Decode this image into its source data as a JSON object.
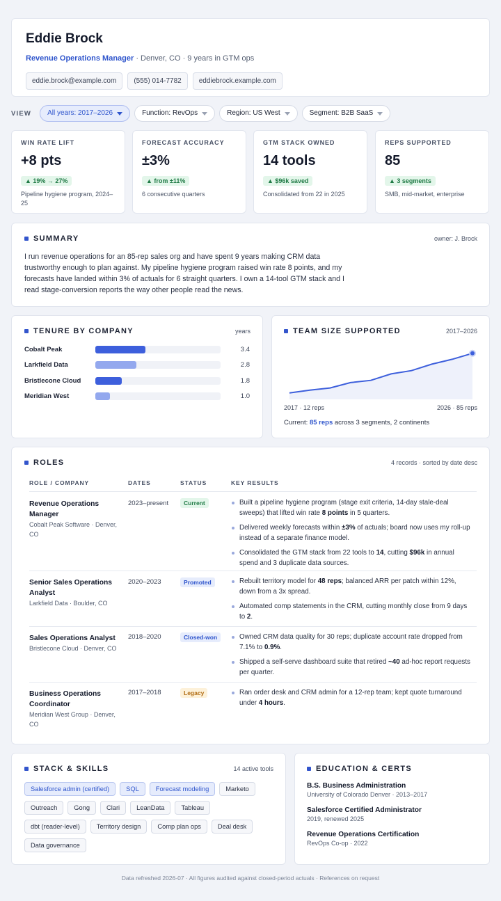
{
  "header": {
    "name": "Eddie Brock",
    "role": "Revenue Operations Manager",
    "details": " · Denver, CO · 9 years in GTM ops",
    "contacts": {
      "email": "eddie.brock@example.com",
      "phone": "(555) 014-7782",
      "website": "eddiebrock.example.com"
    }
  },
  "filters": {
    "label": "VIEW",
    "years": "All years: 2017–2026",
    "function": "Function: RevOps",
    "region": "Region: US West",
    "segment": "Segment: B2B SaaS"
  },
  "kpis": [
    {
      "label": "WIN RATE LIFT",
      "value": "+8 pts",
      "badge": "▲ 19% → 27%",
      "note": "Pipeline hygiene program, 2024–25"
    },
    {
      "label": "FORECAST ACCURACY",
      "value": "±3%",
      "badge": "▲ from ±11%",
      "note": "6 consecutive quarters"
    },
    {
      "label": "GTM STACK OWNED",
      "value": "14 tools",
      "badge": "▲ $96k saved",
      "note": "Consolidated from 22 in 2025"
    },
    {
      "label": "REPS SUPPORTED",
      "value": "85",
      "badge": "▲ 3 segments",
      "note": "SMB, mid-market, enterprise"
    }
  ],
  "summary": {
    "title": "SUMMARY",
    "owner": "owner: J. Brock",
    "text": "I run revenue operations for an 85-rep sales org and have spent 9 years making CRM data trustworthy enough to plan against. My pipeline hygiene program raised win rate 8 points, and my forecasts have landed within 3% of actuals for 6 straight quarters. I own a 14-tool GTM stack and I read stage-conversion reports the way other people read the news."
  },
  "tenure": {
    "title": "TENURE BY COMPANY",
    "unit": "years",
    "colors": [
      "#3d5fdc",
      "#93a8ee",
      "#3d5fdc",
      "#93a8ee"
    ]
  },
  "team": {
    "title": "TEAM SIZE SUPPORTED",
    "range": "2017–2026",
    "axis_start": "2017 · 12 reps",
    "axis_end": "2026 · 85 reps",
    "current_prefix": "Current: ",
    "current_value": "85 reps",
    "current_suffix": " across 3 segments, 2 continents",
    "accent": "#3d5fdc"
  },
  "chart_data": [
    {
      "type": "bar",
      "title": "TENURE BY COMPANY",
      "ylabel": "years",
      "categories": [
        "Cobalt Peak",
        "Larkfield Data",
        "Bristlecone Cloud",
        "Meridian West"
      ],
      "values": [
        3.4,
        2.8,
        1.8,
        1.0
      ],
      "value_labels": [
        "3.4",
        "2.8",
        "1.8",
        "1.0"
      ],
      "xlim": [
        0,
        8.5
      ]
    },
    {
      "type": "area",
      "title": "TEAM SIZE SUPPORTED",
      "x": [
        2017,
        2018,
        2019,
        2020,
        2021,
        2022,
        2023,
        2024,
        2025,
        2026
      ],
      "values": [
        12,
        17,
        21,
        31,
        35,
        47,
        53,
        65,
        74,
        85
      ],
      "ylim": [
        0,
        95
      ]
    }
  ],
  "roles": {
    "title": "ROLES",
    "meta": "4 records · sorted by date desc",
    "headers": {
      "role": "ROLE / COMPANY",
      "dates": "DATES",
      "status": "STATUS",
      "results": "KEY RESULTS"
    },
    "items": [
      {
        "title": "Revenue Operations Manager",
        "org": "Cobalt Peak Software · Denver, CO",
        "dates": "2023–present",
        "status": "Current",
        "r1a": "Built a pipeline hygiene program (stage exit criteria, 14-day stale-deal sweeps) that lifted win rate ",
        "r1b": "8 points",
        "r1c": " in 5 quarters.",
        "r2a": "Delivered weekly forecasts within ",
        "r2b": "±3%",
        "r2c": " of actuals; board now uses my roll-up instead of a separate finance model.",
        "r3a": "Consolidated the GTM stack from 22 tools to ",
        "r3b": "14",
        "r3c": ", cutting ",
        "r3d": "$96k",
        "r3e": " in annual spend and 3 duplicate data sources."
      },
      {
        "title": "Senior Sales Operations Analyst",
        "org": "Larkfield Data · Boulder, CO",
        "dates": "2020–2023",
        "status": "Promoted",
        "r1a": "Rebuilt territory model for ",
        "r1b": "48 reps",
        "r1c": "; balanced ARR per patch within 12%, down from a 3x spread.",
        "r2a": "Automated comp statements in the CRM, cutting monthly close from 9 days to ",
        "r2b": "2",
        "r2c": "."
      },
      {
        "title": "Sales Operations Analyst",
        "org": "Bristlecone Cloud · Denver, CO",
        "dates": "2018–2020",
        "status": "Closed-won",
        "r1a": "Owned CRM data quality for 30 reps; duplicate account rate dropped from 7.1% to ",
        "r1b": "0.9%",
        "r1c": ".",
        "r2a": "Shipped a self-serve dashboard suite that retired ",
        "r2b": "~40",
        "r2c": " ad-hoc report requests per quarter."
      },
      {
        "title": "Business Operations Coordinator",
        "org": "Meridian West Group · Denver, CO",
        "dates": "2017–2018",
        "status": "Legacy",
        "r1a": "Ran order desk and CRM admin for a 12-rep team; kept quote turnaround under ",
        "r1b": "4 hours",
        "r1c": "."
      }
    ]
  },
  "stack": {
    "title": "STACK & SKILLS",
    "meta": "14 active tools",
    "tags": [
      "Salesforce admin (certified)",
      "SQL",
      "Forecast modeling",
      "Marketo",
      "Outreach",
      "Gong",
      "Clari",
      "LeanData",
      "Tableau",
      "dbt (reader-level)",
      "Territory design",
      "Comp plan ops",
      "Deal desk",
      "Data governance"
    ]
  },
  "education": {
    "title": "EDUCATION & CERTS",
    "items": [
      {
        "title": "B.S. Business Administration",
        "sub": "University of Colorado Denver · 2013–2017"
      },
      {
        "title": "Salesforce Certified Administrator",
        "sub": "2019, renewed 2025"
      },
      {
        "title": "Revenue Operations Certification",
        "sub": "RevOps Co-op · 2022"
      }
    ]
  },
  "footer": "Data refreshed 2026-07 · All figures audited against closed-period actuals · References on request"
}
